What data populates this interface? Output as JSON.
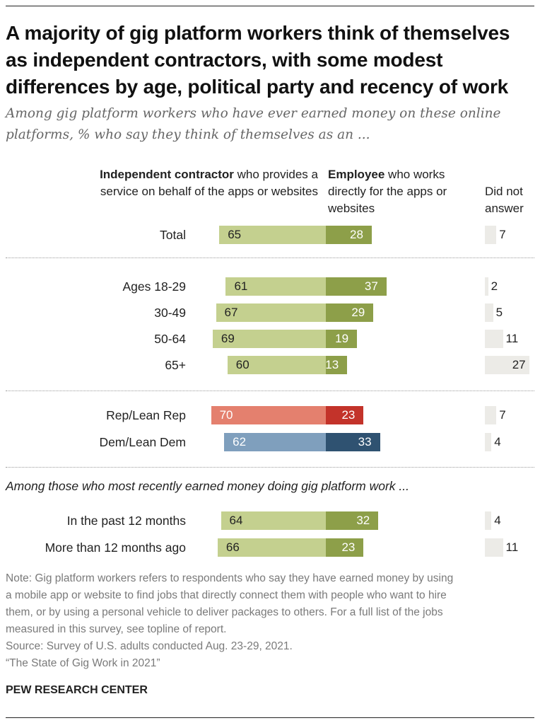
{
  "title": "A majority of gig platform workers think of themselves as independent contractors, with some modest differences by age, political party and recency of work",
  "subtitle": "Among gig platform workers who have ever earned money on these online platforms, % who say they think of themselves as an ...",
  "column_headers": {
    "independent_contractor": {
      "bold": "Independent contractor",
      "rest": " who provides a service on behalf of the apps or websites"
    },
    "employee": {
      "bold": "Employee",
      "rest": " who works directly for the apps or websites"
    },
    "did_not_answer": "Did not answer"
  },
  "section_label": "Among those who most recently earned money doing gig platform work ...",
  "colors": {
    "ic_default": "#c4d08f",
    "emp_default": "#8d9f49",
    "ic_rep": "#e4806e",
    "emp_rep": "#c3332a",
    "ic_dem": "#7f9fbd",
    "emp_dem": "#2f5271",
    "dna": "#ecebe7"
  },
  "chart_data": {
    "type": "bar",
    "subtype": "diverging-stacked-horizontal",
    "series": [
      {
        "name": "Independent contractor",
        "key": "ic"
      },
      {
        "name": "Employee",
        "key": "emp"
      },
      {
        "name": "Did not answer",
        "key": "dna"
      }
    ],
    "rows": [
      {
        "label": "Total",
        "ic": 65,
        "emp": 28,
        "dna": 7,
        "group": "total",
        "palette": "default"
      },
      {
        "label": "Ages 18-29",
        "ic": 61,
        "emp": 37,
        "dna": 2,
        "group": "age",
        "palette": "default"
      },
      {
        "label": "30-49",
        "ic": 67,
        "emp": 29,
        "dna": 5,
        "group": "age",
        "palette": "default"
      },
      {
        "label": "50-64",
        "ic": 69,
        "emp": 19,
        "dna": 11,
        "group": "age",
        "palette": "default"
      },
      {
        "label": "65+",
        "ic": 60,
        "emp": 13,
        "dna": 27,
        "group": "age",
        "palette": "default"
      },
      {
        "label": "Rep/Lean Rep",
        "ic": 70,
        "emp": 23,
        "dna": 7,
        "group": "party",
        "palette": "rep"
      },
      {
        "label": "Dem/Lean Dem",
        "ic": 62,
        "emp": 33,
        "dna": 4,
        "group": "party",
        "palette": "dem"
      },
      {
        "label": "In the past 12 months",
        "ic": 64,
        "emp": 32,
        "dna": 4,
        "group": "recency",
        "palette": "default"
      },
      {
        "label": "More than 12 months ago",
        "ic": 66,
        "emp": 23,
        "dna": 11,
        "group": "recency",
        "palette": "default"
      }
    ]
  },
  "note_lines": [
    "Note: Gig platform workers refers to respondents who say they have earned money by using",
    "a mobile app or website to find jobs that directly connect them with people who want to hire",
    "them, or by using a personal vehicle to deliver packages to others. For a full list of the jobs",
    "measured in this survey, see topline of report.",
    "Source: Survey of U.S. adults conducted Aug. 23-29, 2021.",
    "“The State of Gig Work in 2021”"
  ],
  "source_org": "PEW RESEARCH CENTER"
}
